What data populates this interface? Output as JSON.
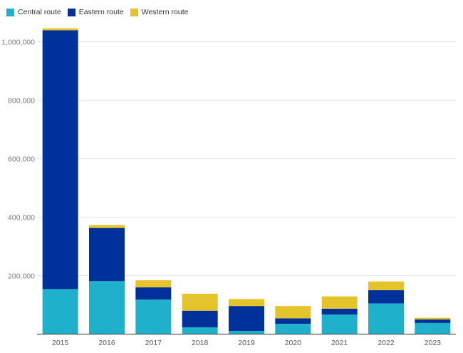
{
  "chart_data": {
    "type": "bar",
    "stacked": true,
    "categories": [
      "2015",
      "2016",
      "2017",
      "2018",
      "2019",
      "2020",
      "2021",
      "2022",
      "2023"
    ],
    "series": [
      {
        "name": "Central route",
        "color": "#1fb1cc",
        "values": [
          154000,
          181000,
          118000,
          23000,
          11000,
          35000,
          67000,
          105000,
          38000
        ]
      },
      {
        "name": "Eastern route",
        "color": "#00309a",
        "values": [
          885000,
          182000,
          42000,
          57000,
          85000,
          19000,
          20000,
          45000,
          12000
        ]
      },
      {
        "name": "Western route",
        "color": "#e5c32a",
        "values": [
          7000,
          10000,
          24000,
          58000,
          24000,
          42000,
          42000,
          30000,
          6000
        ]
      }
    ],
    "yticks": [
      200000,
      400000,
      600000,
      800000,
      1000000
    ],
    "ytick_labels": [
      "200,000",
      "400,000",
      "600,000",
      "800,000",
      "1,000,000"
    ],
    "ylim": [
      0,
      1050000
    ],
    "grid": true,
    "legend": "top-left",
    "title": "",
    "xlabel": "",
    "ylabel": ""
  }
}
